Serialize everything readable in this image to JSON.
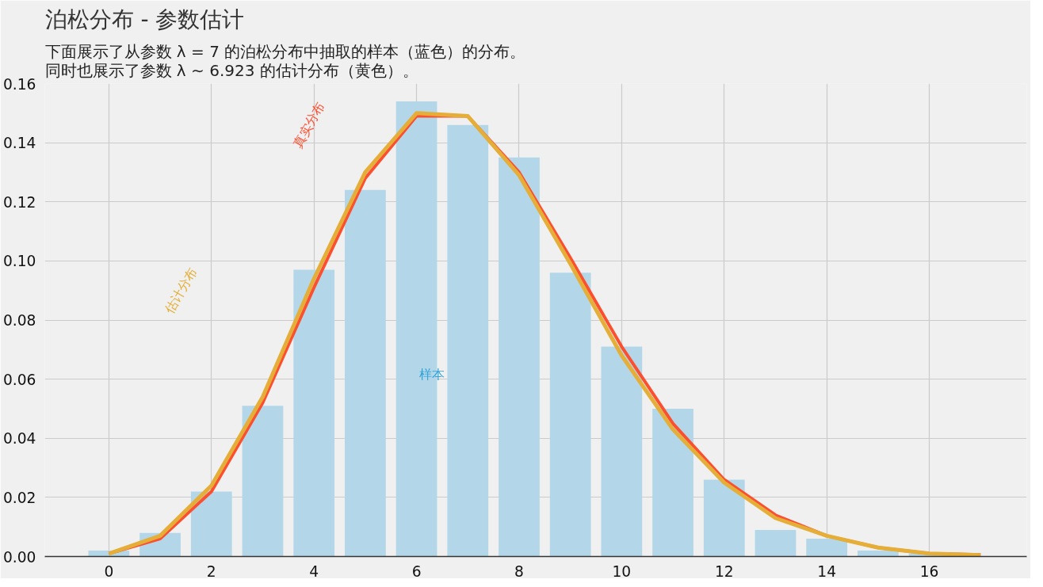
{
  "chart_data": {
    "type": "bar",
    "title": "泊松分布 - 参数估计",
    "subtitle": "下面展示了从参数 λ = 7 的泊松分布中抽取的样本（蓝色）的分布。同时也展示了参数 λ ∼ 6.923 的估计分布（黄色）。",
    "x": [
      0,
      1,
      2,
      3,
      4,
      5,
      6,
      7,
      8,
      9,
      10,
      11,
      12,
      13,
      14,
      15,
      16,
      17
    ],
    "series": [
      {
        "name": "样本",
        "color": "#b3d7e8",
        "values": [
          0.002,
          0.008,
          0.022,
          0.051,
          0.097,
          0.124,
          0.154,
          0.146,
          0.135,
          0.096,
          0.071,
          0.05,
          0.026,
          0.009,
          0.006,
          0.002,
          0.001,
          null
        ]
      },
      {
        "type": "line",
        "name": "真实分布",
        "color": "#fc4f30",
        "values": [
          0.001,
          0.006,
          0.022,
          0.052,
          0.091,
          0.128,
          0.149,
          0.149,
          0.13,
          0.101,
          0.071,
          0.045,
          0.026,
          0.014,
          0.007,
          0.003,
          0.001,
          0.0006
        ]
      },
      {
        "type": "line",
        "name": "估计分布",
        "color": "#e5ae38",
        "values": [
          0.001,
          0.007,
          0.024,
          0.054,
          0.094,
          0.13,
          0.15,
          0.149,
          0.129,
          0.099,
          0.068,
          0.043,
          0.025,
          0.013,
          0.007,
          0.003,
          0.001,
          0.0005
        ]
      }
    ],
    "xlim": [
      -1.25,
      17.9
    ],
    "ylim": [
      0,
      0.16
    ],
    "xticks": [
      0,
      2,
      4,
      6,
      8,
      10,
      12,
      14,
      16
    ],
    "yticks": [
      {
        "value": 0,
        "label": "0.00"
      },
      {
        "value": 0.02,
        "label": "0.02"
      },
      {
        "value": 0.04,
        "label": "0.04"
      },
      {
        "value": 0.06,
        "label": "0.06"
      },
      {
        "value": 0.08,
        "label": "0.08"
      },
      {
        "value": 0.1,
        "label": "0.10"
      },
      {
        "value": 0.12,
        "label": "0.12"
      },
      {
        "value": 0.14,
        "label": "0.14"
      },
      {
        "value": 0.16,
        "label": "0.16"
      }
    ],
    "grid": true
  }
}
